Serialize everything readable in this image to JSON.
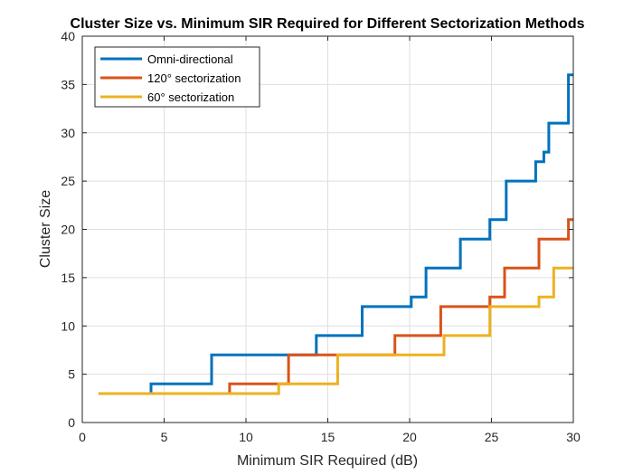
{
  "chart_data": {
    "type": "line",
    "title": "Cluster Size vs. Minimum SIR Required for Different Sectorization Methods",
    "xlabel": "Minimum SIR Required (dB)",
    "ylabel": "Cluster Size",
    "xlim": [
      0,
      30
    ],
    "ylim": [
      0,
      40
    ],
    "xticks": [
      0,
      5,
      10,
      15,
      20,
      25,
      30
    ],
    "yticks": [
      0,
      5,
      10,
      15,
      20,
      25,
      30,
      35,
      40
    ],
    "grid": true,
    "legend_position": "top-left",
    "step": true,
    "series": [
      {
        "name": "Omni-directional",
        "color": "#0072BD",
        "x": [
          1,
          4.2,
          4.2,
          7.9,
          7.9,
          14.3,
          14.3,
          17.1,
          17.1,
          20.1,
          20.1,
          21.0,
          21.0,
          23.1,
          23.1,
          24.9,
          24.9,
          25.9,
          25.9,
          27.7,
          27.7,
          28.2,
          28.2,
          28.5,
          28.5,
          29.7,
          29.7,
          30
        ],
        "y": [
          3,
          3,
          4,
          4,
          7,
          7,
          9,
          9,
          12,
          12,
          13,
          13,
          16,
          16,
          19,
          19,
          21,
          21,
          25,
          25,
          27,
          27,
          28,
          28,
          31,
          31,
          36,
          36
        ]
      },
      {
        "name": "120° sectorization",
        "color": "#D95319",
        "x": [
          1,
          9.0,
          9.0,
          12.6,
          12.6,
          19.1,
          19.1,
          21.9,
          21.9,
          24.9,
          24.9,
          25.8,
          25.8,
          27.9,
          27.9,
          29.7,
          29.7,
          30
        ],
        "y": [
          3,
          3,
          4,
          4,
          7,
          7,
          9,
          9,
          12,
          12,
          13,
          13,
          16,
          16,
          19,
          19,
          21,
          21
        ]
      },
      {
        "name": "60° sectorization",
        "color": "#EDB120",
        "x": [
          1,
          12.0,
          12.0,
          15.6,
          15.6,
          22.1,
          22.1,
          24.9,
          24.9,
          27.9,
          27.9,
          28.8,
          28.8,
          30
        ],
        "y": [
          3,
          3,
          4,
          4,
          7,
          7,
          9,
          9,
          12,
          12,
          13,
          13,
          16,
          16
        ]
      }
    ]
  }
}
